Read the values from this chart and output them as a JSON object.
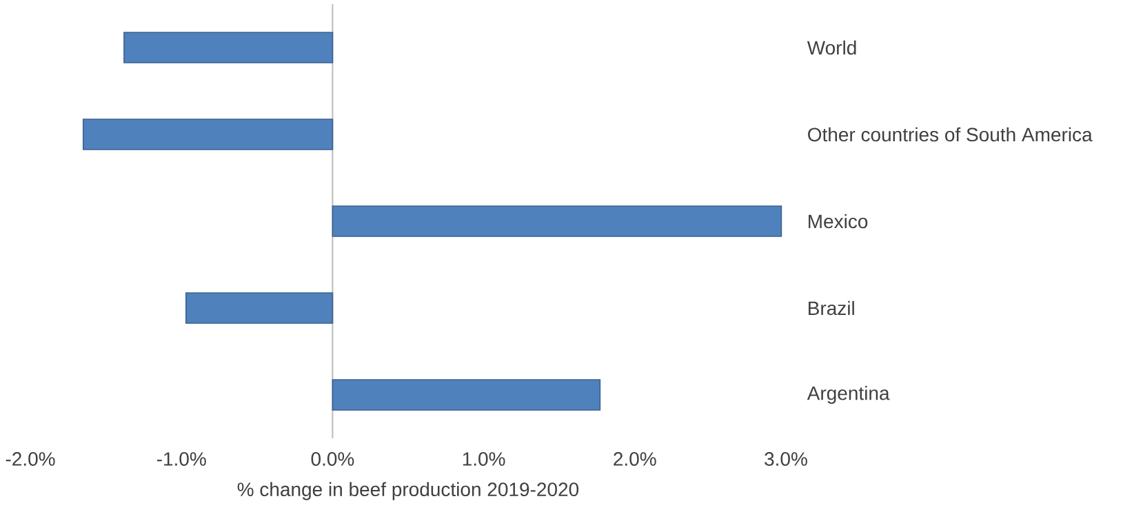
{
  "chart_data": {
    "type": "bar",
    "orientation": "horizontal",
    "xlabel": "% change in beef production 2019-2020",
    "categories": [
      "World",
      "Other countries of South America",
      "Mexico",
      "Brazil",
      "Argentina"
    ],
    "values": [
      -1.38,
      -1.65,
      2.97,
      -0.97,
      1.77
    ],
    "color": "#4f81bd",
    "xlim": [
      -2,
      3
    ],
    "xticks": [
      {
        "value": -2,
        "label": "-2.0%"
      },
      {
        "value": -1,
        "label": "-1.0%"
      },
      {
        "value": 0,
        "label": "0.0%"
      },
      {
        "value": 1,
        "label": "1.0%"
      },
      {
        "value": 2,
        "label": "2.0%"
      },
      {
        "value": 3,
        "label": "3.0%"
      }
    ],
    "tick_labels": "xy"
  }
}
